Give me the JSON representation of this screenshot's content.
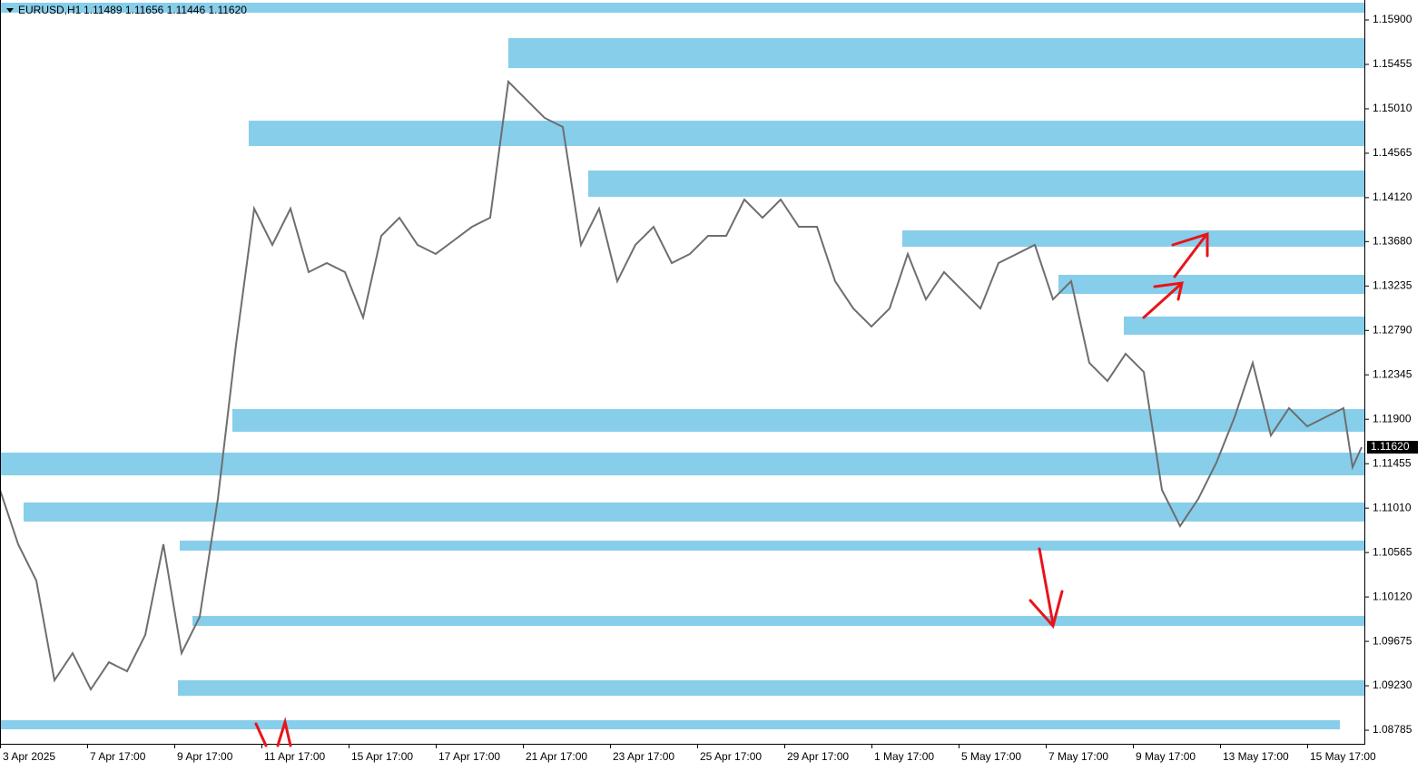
{
  "chart_data": {
    "type": "line",
    "symbol": "EURUSD,H1",
    "ohlc": "1.11489 1.11656 1.11446 1.11620",
    "x": [
      0,
      10,
      20,
      30,
      40,
      50,
      60,
      70,
      80,
      90,
      100,
      110,
      120,
      130,
      140,
      150,
      160,
      170,
      180,
      190,
      200,
      210,
      220,
      230,
      240,
      250,
      260,
      270,
      280,
      290,
      300,
      310,
      320,
      330,
      340,
      350,
      360,
      370,
      380,
      390,
      400,
      410,
      420,
      430,
      440,
      450,
      460,
      470,
      480,
      490,
      500,
      510,
      520,
      530,
      540,
      550,
      560,
      570,
      580,
      590,
      600,
      610,
      620,
      630,
      640,
      650,
      660,
      670,
      680,
      690,
      700,
      710,
      720,
      730,
      740,
      745,
      750
    ],
    "series": [
      {
        "name": "EURUSD",
        "color": "#6e6e6e",
        "values": [
          1.11193,
          1.10648,
          1.10284,
          1.09285,
          1.09557,
          1.09194,
          1.09466,
          1.09376,
          1.09739,
          1.10648,
          1.09557,
          1.09921,
          1.11102,
          1.12647,
          1.1401,
          1.13647,
          1.1401,
          1.13374,
          1.13465,
          1.13374,
          1.1292,
          1.13737,
          1.13919,
          1.13647,
          1.13556,
          1.13692,
          1.13828,
          1.13919,
          1.15282,
          1.151,
          1.14919,
          1.14828,
          1.13647,
          1.1401,
          1.13283,
          1.13647,
          1.13828,
          1.13465,
          1.13556,
          1.13737,
          1.13737,
          1.14101,
          1.13919,
          1.14101,
          1.13828,
          1.13828,
          1.13283,
          1.1301,
          1.12829,
          1.1301,
          1.13556,
          1.13101,
          1.13374,
          1.13192,
          1.1301,
          1.13465,
          1.13556,
          1.13647,
          1.13101,
          1.13283,
          1.12465,
          1.12283,
          1.12556,
          1.12374,
          1.11193,
          1.1083,
          1.11102,
          1.11466,
          1.1192,
          1.12465,
          1.11738,
          1.12011,
          1.11829,
          1.1192,
          1.12011,
          1.1142,
          1.1162
        ]
      }
    ],
    "zones": [
      {
        "x0": 0,
        "x1": 752,
        "y0": 1.15973,
        "y1": 1.16073
      },
      {
        "x0": 280,
        "x1": 752,
        "y0": 1.15418,
        "y1": 1.15718
      },
      {
        "x0": 137,
        "x1": 752,
        "y0": 1.14637,
        "y1": 1.14891
      },
      {
        "x0": 324,
        "x1": 752,
        "y0": 1.14128,
        "y1": 1.14392
      },
      {
        "x0": 497,
        "x1": 752,
        "y0": 1.13628,
        "y1": 1.13792
      },
      {
        "x0": 583,
        "x1": 752,
        "y0": 1.13156,
        "y1": 1.13347
      },
      {
        "x0": 619,
        "x1": 752,
        "y0": 1.12747,
        "y1": 1.12929
      },
      {
        "x0": 128,
        "x1": 752,
        "y0": 1.11775,
        "y1": 1.12002
      },
      {
        "x0": 0,
        "x1": 752,
        "y0": 1.11338,
        "y1": 1.11566
      },
      {
        "x0": 13,
        "x1": 752,
        "y0": 1.10875,
        "y1": 1.11066
      },
      {
        "x0": 99,
        "x1": 752,
        "y0": 1.10584,
        "y1": 1.10684
      },
      {
        "x0": 106,
        "x1": 752,
        "y0": 1.0983,
        "y1": 1.0993
      },
      {
        "x0": 98,
        "x1": 752,
        "y0": 1.0913,
        "y1": 1.09285
      },
      {
        "x0": 0,
        "x1": 738,
        "y0": 1.08794,
        "y1": 1.08885
      }
    ],
    "zone_color": "#87ceeb",
    "last_price": {
      "value": 1.1162,
      "label": "1.11620"
    },
    "xlim": [
      0,
      752
    ],
    "ylim": [
      1.08649,
      1.161
    ],
    "xticks": [
      {
        "value": 0,
        "label": "3 Apr 2025"
      },
      {
        "value": 48,
        "label": "7 Apr 17:00"
      },
      {
        "value": 96,
        "label": "9 Apr 17:00"
      },
      {
        "value": 144,
        "label": "11 Apr 17:00"
      },
      {
        "value": 192,
        "label": "15 Apr 17:00"
      },
      {
        "value": 240,
        "label": "17 Apr 17:00"
      },
      {
        "value": 288,
        "label": "21 Apr 17:00"
      },
      {
        "value": 336,
        "label": "23 Apr 17:00"
      },
      {
        "value": 384,
        "label": "25 Apr 17:00"
      },
      {
        "value": 432,
        "label": "29 Apr 17:00"
      },
      {
        "value": 480,
        "label": "1 May 17:00"
      },
      {
        "value": 528,
        "label": "5 May 17:00"
      },
      {
        "value": 576,
        "label": "7 May 17:00"
      },
      {
        "value": 624,
        "label": "9 May 17:00"
      },
      {
        "value": 672,
        "label": "13 May 17:00"
      },
      {
        "value": 720,
        "label": "15 May 17:00"
      }
    ],
    "yticks": [
      {
        "value": 1.159,
        "label": "1.15900"
      },
      1.15455,
      {
        "value": 1.1501,
        "label": "1.15010"
      },
      1.14565,
      {
        "value": 1.1412,
        "label": "1.14120"
      },
      {
        "value": 1.1368,
        "label": "1.13680"
      },
      1.13235,
      {
        "value": 1.1279,
        "label": "1.12790"
      },
      1.12345,
      {
        "value": 1.119,
        "label": "1.11900"
      },
      1.11455,
      {
        "value": 1.1101,
        "label": "1.11010"
      },
      1.10565,
      {
        "value": 1.1012,
        "label": "1.10120"
      },
      1.09675,
      {
        "value": 1.0923,
        "label": "1.09230"
      },
      {
        "value": 1.08785,
        "label": "1.08785"
      }
    ]
  }
}
